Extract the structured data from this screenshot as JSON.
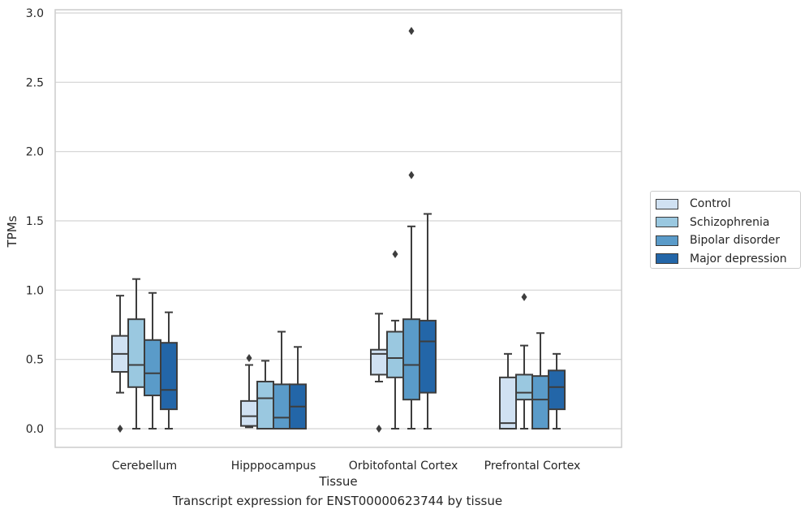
{
  "chart_data": {
    "type": "boxplot",
    "title": "Transcript expression for ENST00000623744 by tissue",
    "xlabel": "Tissue",
    "ylabel": "TPMs",
    "ylim": [
      -0.14,
      3.02
    ],
    "yticks": [
      "0.0",
      "0.5",
      "1.0",
      "1.5",
      "2.0",
      "2.5",
      "3.0"
    ],
    "ytick_values": [
      0,
      0.5,
      1.0,
      1.5,
      2.0,
      2.5,
      3.0
    ],
    "grid": "horizontal",
    "legend_position": "right",
    "categories": [
      "Cerebellum",
      "Hipppocampus",
      "Orbitofontal Cortex",
      "Prefrontal Cortex"
    ],
    "series": [
      {
        "name": "Control",
        "color": "#d0e1f2",
        "boxes": [
          {
            "whislo": 0.26,
            "q1": 0.41,
            "med": 0.54,
            "q3": 0.67,
            "whishi": 0.96,
            "fliers": [
              0.0
            ]
          },
          {
            "whislo": 0.01,
            "q1": 0.02,
            "med": 0.09,
            "q3": 0.2,
            "whishi": 0.46,
            "fliers": [
              0.51
            ]
          },
          {
            "whislo": 0.34,
            "q1": 0.39,
            "med": 0.54,
            "q3": 0.57,
            "whishi": 0.83,
            "fliers": [
              0.0
            ]
          },
          {
            "whislo": 0.0,
            "q1": 0.0,
            "med": 0.04,
            "q3": 0.37,
            "whishi": 0.54,
            "fliers": []
          }
        ]
      },
      {
        "name": "Schizophrenia",
        "color": "#9ac8e0",
        "boxes": [
          {
            "whislo": 0.0,
            "q1": 0.3,
            "med": 0.46,
            "q3": 0.79,
            "whishi": 1.08,
            "fliers": []
          },
          {
            "whislo": 0.0,
            "q1": 0.0,
            "med": 0.22,
            "q3": 0.34,
            "whishi": 0.49,
            "fliers": []
          },
          {
            "whislo": 0.0,
            "q1": 0.37,
            "med": 0.51,
            "q3": 0.7,
            "whishi": 0.78,
            "fliers": [
              1.26
            ]
          },
          {
            "whislo": 0.0,
            "q1": 0.21,
            "med": 0.26,
            "q3": 0.39,
            "whishi": 0.6,
            "fliers": [
              0.95
            ]
          }
        ]
      },
      {
        "name": "Bipolar disorder",
        "color": "#5a9bc9",
        "boxes": [
          {
            "whislo": 0.0,
            "q1": 0.24,
            "med": 0.4,
            "q3": 0.64,
            "whishi": 0.98,
            "fliers": []
          },
          {
            "whislo": 0.0,
            "q1": 0.0,
            "med": 0.08,
            "q3": 0.32,
            "whishi": 0.7,
            "fliers": []
          },
          {
            "whislo": 0.0,
            "q1": 0.21,
            "med": 0.46,
            "q3": 0.79,
            "whishi": 1.46,
            "fliers": [
              1.83,
              2.87
            ]
          },
          {
            "whislo": 0.0,
            "q1": 0.0,
            "med": 0.21,
            "q3": 0.38,
            "whishi": 0.69,
            "fliers": []
          }
        ]
      },
      {
        "name": "Major depression",
        "color": "#2366a8",
        "boxes": [
          {
            "whislo": 0.0,
            "q1": 0.14,
            "med": 0.28,
            "q3": 0.62,
            "whishi": 0.84,
            "fliers": []
          },
          {
            "whislo": 0.0,
            "q1": 0.0,
            "med": 0.16,
            "q3": 0.32,
            "whishi": 0.59,
            "fliers": []
          },
          {
            "whislo": 0.0,
            "q1": 0.26,
            "med": 0.63,
            "q3": 0.78,
            "whishi": 1.55,
            "fliers": []
          },
          {
            "whislo": 0.0,
            "q1": 0.14,
            "med": 0.3,
            "q3": 0.42,
            "whishi": 0.54,
            "fliers": []
          }
        ]
      }
    ]
  }
}
